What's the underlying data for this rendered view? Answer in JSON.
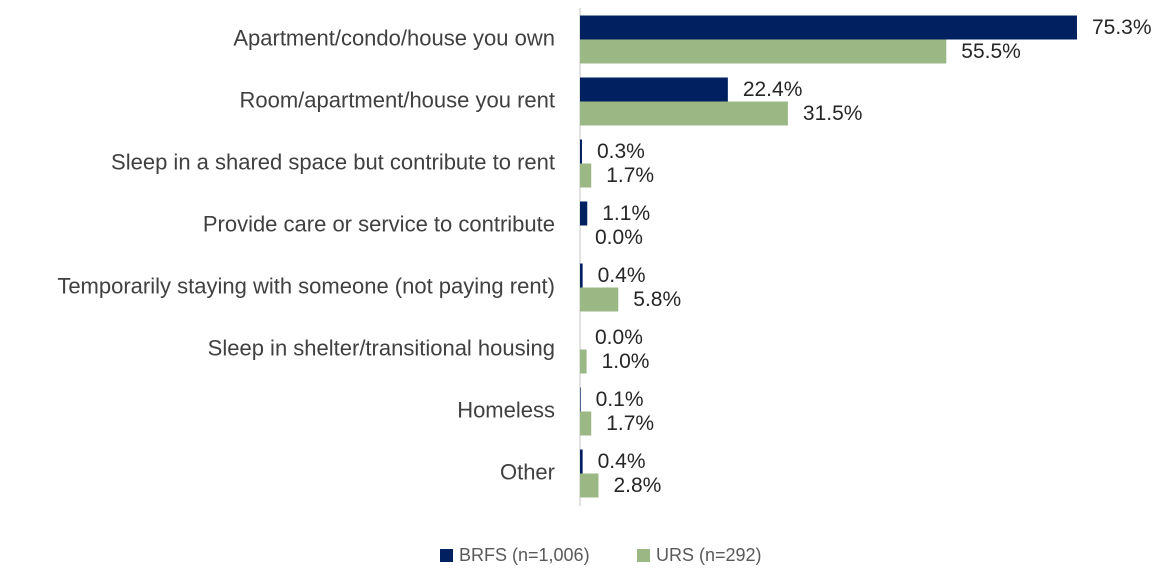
{
  "chart_data": {
    "type": "hbar",
    "categories": [
      "Apartment/condo/house you own",
      "Room/apartment/house you rent",
      "Sleep in a shared space but contribute to rent",
      "Provide care or service to contribute",
      "Temporarily staying with someone (not paying rent)",
      "Sleep in shelter/transitional housing",
      "Homeless",
      "Other"
    ],
    "series": [
      {
        "name": "BRFS (n=1,006)",
        "color": "#002060",
        "values": [
          75.3,
          22.4,
          0.3,
          1.1,
          0.4,
          0.0,
          0.1,
          0.4
        ],
        "value_labels": [
          "75.3%",
          "22.4%",
          "0.3%",
          "1.1%",
          "0.4%",
          "0.0%",
          "0.1%",
          "0.4%"
        ]
      },
      {
        "name": "URS (n=292)",
        "color": "#9bb784",
        "values": [
          55.5,
          31.5,
          1.7,
          0.0,
          5.8,
          1.0,
          1.7,
          2.8
        ],
        "value_labels": [
          "55.5%",
          "31.5%",
          "1.7%",
          "0.0%",
          "5.8%",
          "1.0%",
          "1.7%",
          "2.8%"
        ]
      }
    ],
    "legend": "bottom"
  }
}
